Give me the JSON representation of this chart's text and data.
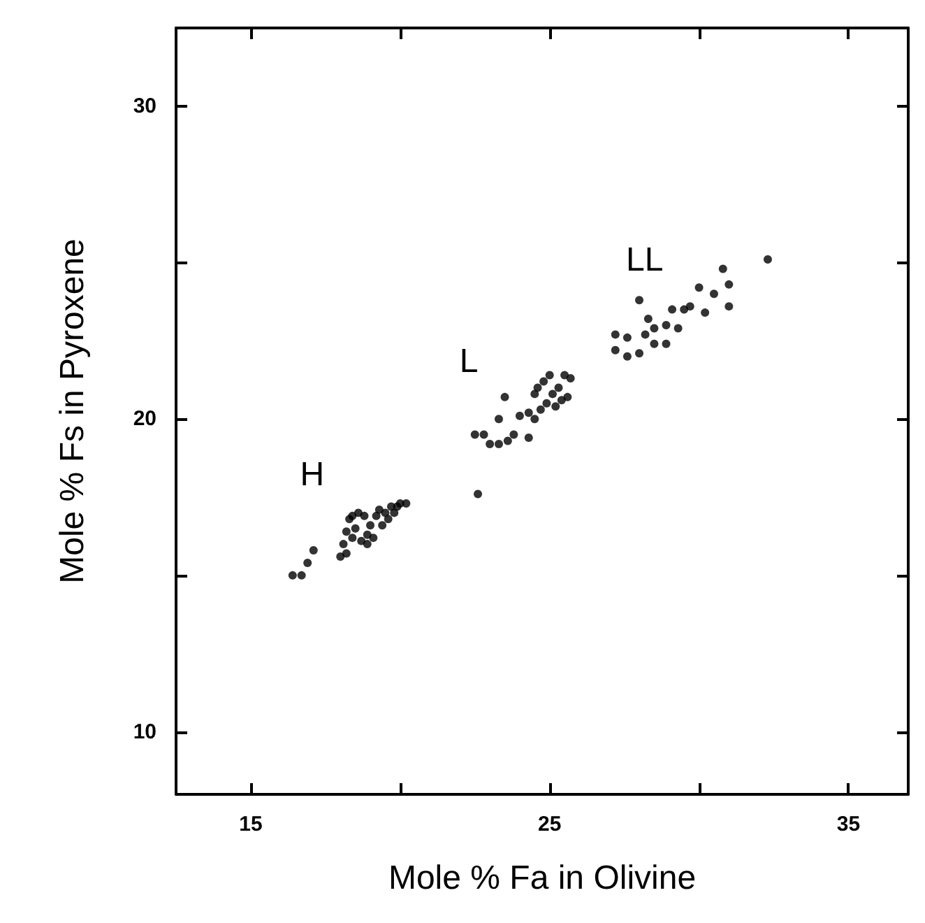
{
  "chart_data": {
    "type": "scatter",
    "xlabel": "Mole % Fa in Olivine",
    "ylabel": "Mole % Fs in Pyroxene",
    "marker": "circle",
    "xlim": [
      12.5,
      37
    ],
    "ylim": [
      8,
      32.5
    ],
    "xticks": [
      15,
      {
        "value": 20,
        "label": null
      },
      25,
      {
        "value": 30,
        "label": null
      },
      35
    ],
    "yticks": [
      10,
      {
        "value": 15,
        "label": null
      },
      20,
      {
        "value": 25,
        "label": null
      },
      30
    ],
    "annotations": [
      "H",
      "L",
      "LL"
    ],
    "series": [
      {
        "color": "#000000",
        "x": [
          16.4,
          16.7,
          16.9,
          17.1,
          18.0,
          18.1,
          18.2,
          18.3,
          18.4,
          18.6,
          18.8,
          18.5,
          18.9,
          19.0,
          19.2,
          19.3,
          19.5,
          19.7,
          19.9,
          20.0,
          19.4,
          19.1,
          18.7,
          18.9,
          19.6,
          18.2,
          18.4,
          20.2,
          19.8,
          22.5,
          22.8,
          23.0,
          23.3,
          23.6,
          23.8,
          24.3,
          23.5,
          23.3,
          24.0,
          24.3,
          24.5,
          24.7,
          24.9,
          24.5,
          24.8,
          25.1,
          25.3,
          25.5,
          25.7,
          25.2,
          25.6,
          24.6,
          25.0,
          25.4,
          22.6,
          28.0,
          30.8,
          31.0,
          31.0,
          30.0,
          30.5,
          29.7,
          30.2,
          29.1,
          28.3,
          28.9,
          28.5,
          29.3,
          28.2,
          27.2,
          27.6,
          27.2,
          27.6,
          28.0,
          28.5,
          28.9,
          29.5,
          32.3
        ],
        "values": [
          15.0,
          15.0,
          15.4,
          15.8,
          15.6,
          16.0,
          16.4,
          16.8,
          16.9,
          17.0,
          16.9,
          16.5,
          16.3,
          16.6,
          16.9,
          17.1,
          17.0,
          17.2,
          17.2,
          17.3,
          16.6,
          16.2,
          16.1,
          16.0,
          16.8,
          15.7,
          16.2,
          17.3,
          17.0,
          19.5,
          19.5,
          19.2,
          19.2,
          19.3,
          19.5,
          19.4,
          20.7,
          20.0,
          20.1,
          20.2,
          20.0,
          20.3,
          20.5,
          20.8,
          21.2,
          20.8,
          21.0,
          21.4,
          21.3,
          20.4,
          20.7,
          21.0,
          21.4,
          20.6,
          17.6,
          23.8,
          24.8,
          24.3,
          23.6,
          24.2,
          24.0,
          23.6,
          23.4,
          23.5,
          23.2,
          23.0,
          22.9,
          22.9,
          22.7,
          22.7,
          22.6,
          22.2,
          22.0,
          22.1,
          22.4,
          22.4,
          23.5,
          25.1
        ]
      }
    ]
  }
}
